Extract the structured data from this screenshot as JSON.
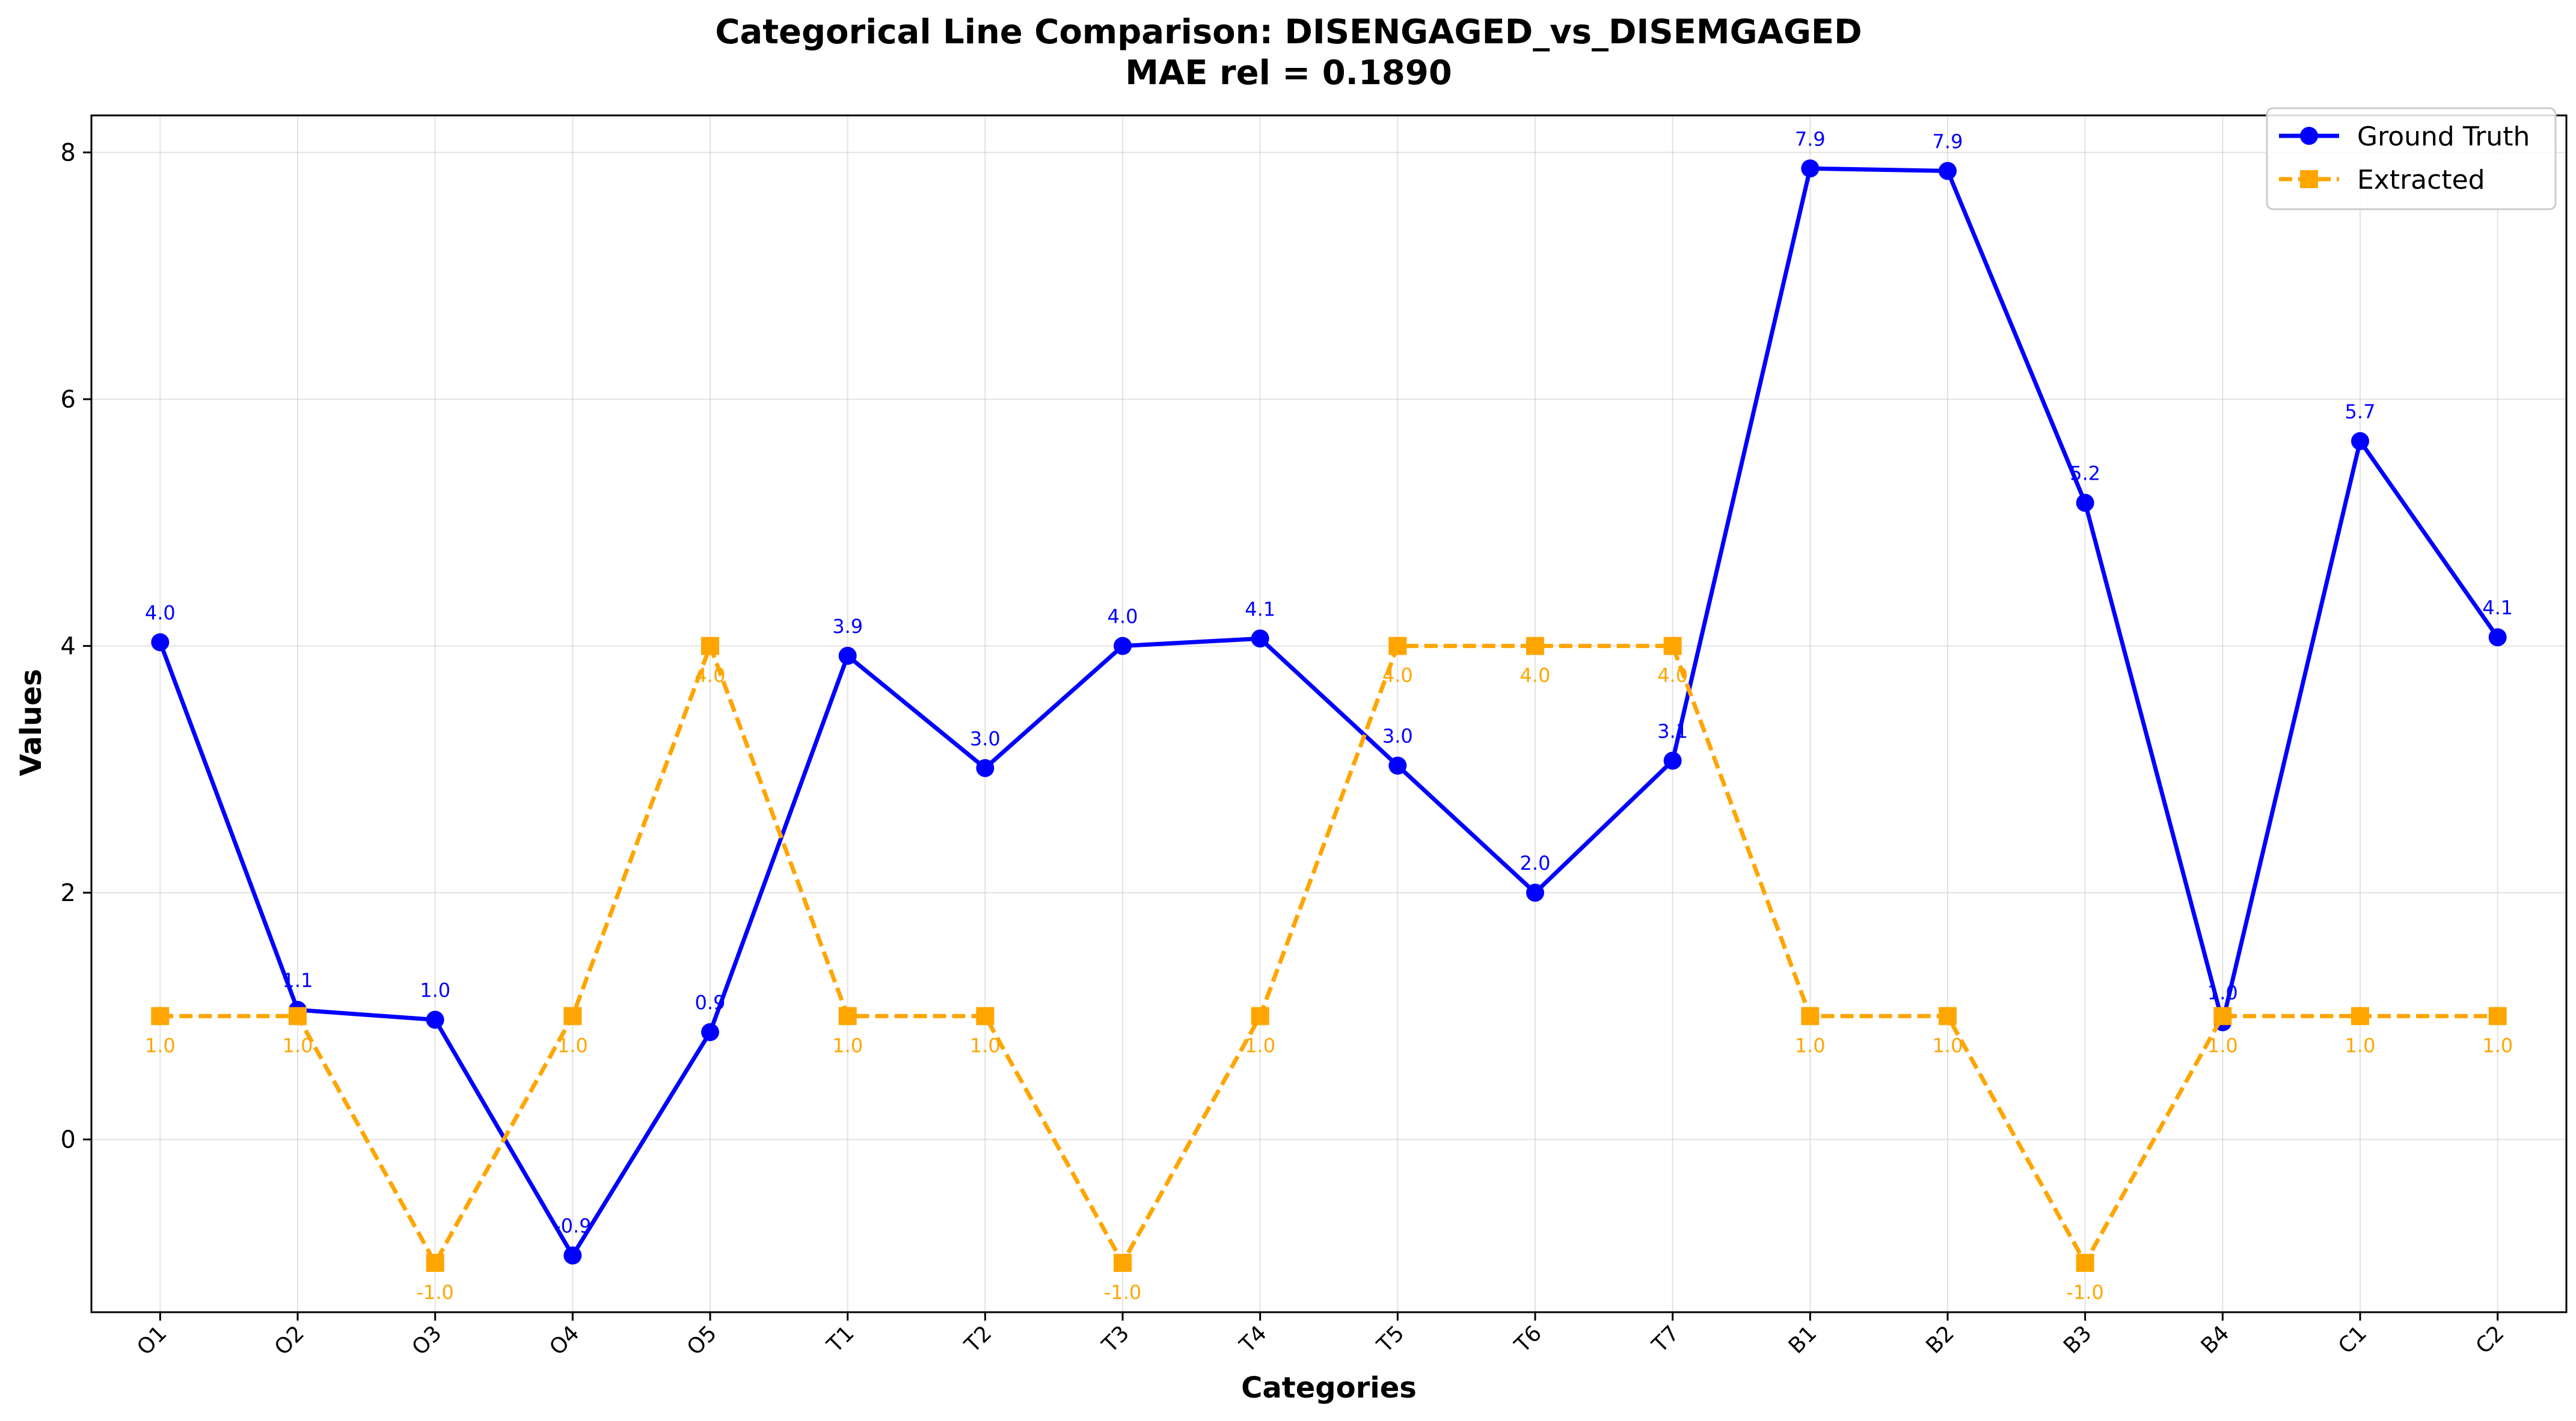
{
  "chart_data": {
    "type": "line",
    "title_line1": "Categorical Line Comparison: DISENGAGED_vs_DISEMGAGED",
    "title_line2": "MAE rel = 0.1890",
    "xlabel": "Categories",
    "ylabel": "Values",
    "categories": [
      "O1",
      "O2",
      "O3",
      "O4",
      "O5",
      "T1",
      "T2",
      "T3",
      "T4",
      "T5",
      "T6",
      "T7",
      "B1",
      "B2",
      "B3",
      "B4",
      "C1",
      "C2"
    ],
    "ylim": [
      -1.4,
      8.3
    ],
    "yticks": [
      0,
      2,
      4,
      6,
      8
    ],
    "grid": true,
    "legend_position": "top-right",
    "series": [
      {
        "name": "Ground Truth",
        "color": "#0000ff",
        "line_style": "solid",
        "marker": "circle",
        "label_position": "above",
        "values": [
          4.03,
          1.05,
          0.97,
          -0.94,
          0.87,
          3.92,
          3.01,
          4.0,
          4.06,
          3.03,
          2.0,
          3.07,
          7.87,
          7.85,
          5.16,
          0.95,
          5.66,
          4.07
        ],
        "labels": [
          "4.0",
          "1.1",
          "1.0",
          "-0.9",
          "0.9",
          "3.9",
          "3.0",
          "4.0",
          "4.1",
          "3.0",
          "2.0",
          "3.1",
          "7.9",
          "7.9",
          "5.2",
          "1.0",
          "5.7",
          "4.1"
        ]
      },
      {
        "name": "Extracted",
        "color": "#ffa500",
        "line_style": "dashed",
        "marker": "square",
        "label_position": "below",
        "values": [
          1.0,
          1.0,
          -1.0,
          1.0,
          4.0,
          1.0,
          1.0,
          -1.0,
          1.0,
          4.0,
          4.0,
          4.0,
          1.0,
          1.0,
          -1.0,
          1.0,
          1.0,
          1.0
        ],
        "labels": [
          "1.0",
          "1.0",
          "-1.0",
          "1.0",
          "4.0",
          "1.0",
          "1.0",
          "-1.0",
          "1.0",
          "4.0",
          "4.0",
          "4.0",
          "1.0",
          "1.0",
          "-1.0",
          "1.0",
          "1.0",
          "1.0"
        ]
      }
    ]
  }
}
